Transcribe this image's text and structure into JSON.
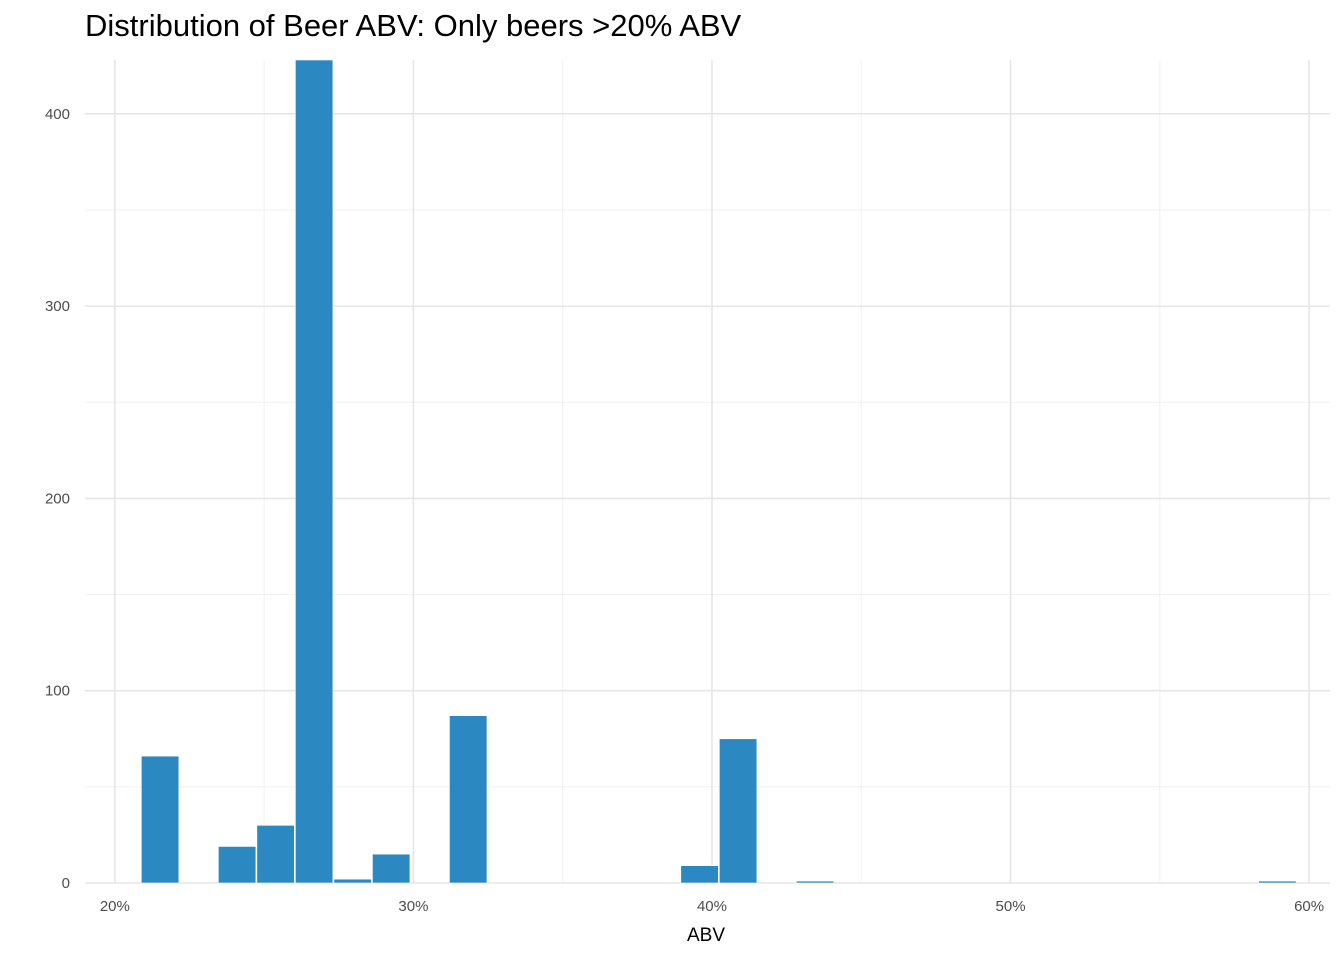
{
  "chart_data": {
    "type": "bar",
    "title": "Distribution of Beer ABV: Only beers >20% ABV",
    "xlabel": "ABV",
    "ylabel": "",
    "xlim": [
      19,
      60.7
    ],
    "ylim": [
      0,
      428
    ],
    "x_ticks": [
      20,
      30,
      40,
      50,
      60
    ],
    "x_tick_labels": [
      "20%",
      "30%",
      "40%",
      "50%",
      "60%"
    ],
    "y_ticks": [
      0,
      100,
      200,
      300,
      400
    ],
    "y_tick_labels": [
      "0",
      "100",
      "200",
      "300",
      "400"
    ],
    "bin_width": 1.29,
    "bins": [
      {
        "x_start": 20.87,
        "x_end": 22.16,
        "count": 66
      },
      {
        "x_start": 23.45,
        "x_end": 24.74,
        "count": 19
      },
      {
        "x_start": 24.74,
        "x_end": 26.03,
        "count": 30
      },
      {
        "x_start": 26.03,
        "x_end": 27.32,
        "count": 428
      },
      {
        "x_start": 27.32,
        "x_end": 28.61,
        "count": 2
      },
      {
        "x_start": 28.61,
        "x_end": 29.9,
        "count": 15
      },
      {
        "x_start": 31.19,
        "x_end": 32.48,
        "count": 87
      },
      {
        "x_start": 38.94,
        "x_end": 40.23,
        "count": 9
      },
      {
        "x_start": 40.23,
        "x_end": 41.52,
        "count": 75
      },
      {
        "x_start": 42.81,
        "x_end": 44.1,
        "count": 1
      },
      {
        "x_start": 58.29,
        "x_end": 59.58,
        "count": 1
      }
    ],
    "bar_color": "#2b88c0",
    "grid": true,
    "legend": "none"
  }
}
